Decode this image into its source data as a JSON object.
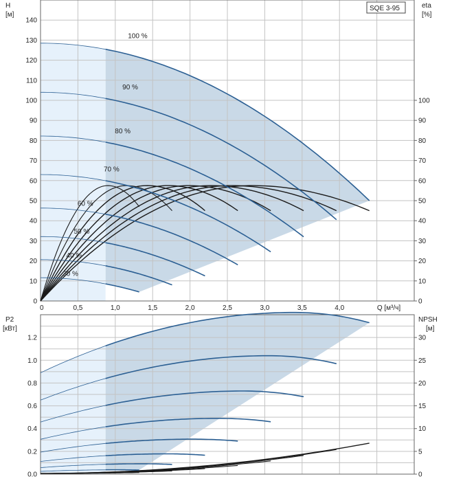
{
  "chart_data": [
    {
      "type": "line",
      "name": "head-curves",
      "title": "SQE 3-95",
      "xlabel": "Q [м³/ч]",
      "ylabel_left": "H",
      "ylabel_left_unit": "[м]",
      "ylabel_right": "eta",
      "ylabel_right_unit": "[%]",
      "xlim": [
        0,
        5.0
      ],
      "ylim_left": [
        0,
        150
      ],
      "ylim_right": [
        0,
        150
      ],
      "x_ticks": [
        "0",
        "0,5",
        "1,0",
        "1,5",
        "2,0",
        "2,5",
        "3,0",
        "3,5",
        "4,0",
        "Q [м³/ч]"
      ],
      "x_tick_values": [
        0,
        0.5,
        1.0,
        1.5,
        2.0,
        2.5,
        3.0,
        3.5,
        4.0
      ],
      "y_ticks_left": [
        "0",
        "10",
        "20",
        "30",
        "40",
        "50",
        "60",
        "70",
        "80",
        "90",
        "100",
        "110",
        "120",
        "130",
        "140"
      ],
      "y_ticks_right": [
        "0",
        "10",
        "20",
        "30",
        "40",
        "50",
        "60",
        "70",
        "80",
        "90",
        "100"
      ],
      "grid": true,
      "min_flow_q": 0.87,
      "series": [
        {
          "name": "100 %",
          "h0": 128.5,
          "qmax": 4.4,
          "hend": 50
        },
        {
          "name": "90 %",
          "h0": 104,
          "qmax": 3.96,
          "hend": 40.5
        },
        {
          "name": "80 %",
          "h0": 82.2,
          "qmax": 3.52,
          "hend": 32
        },
        {
          "name": "70 %",
          "h0": 63,
          "qmax": 3.08,
          "hend": 24.5
        },
        {
          "name": "60 %",
          "h0": 46.3,
          "qmax": 2.64,
          "hend": 18
        },
        {
          "name": "50 %",
          "h0": 32.1,
          "qmax": 2.2,
          "hend": 12.5
        },
        {
          "name": "40 %",
          "h0": 20.6,
          "qmax": 1.76,
          "hend": 8
        },
        {
          "name": "30 %",
          "h0": 11.6,
          "qmax": 1.32,
          "hend": 4.5
        }
      ],
      "efficiency_peaks": [
        {
          "q_peak": 0.9,
          "q_end": 1.32,
          "e_end": 47
        },
        {
          "q_peak": 1.15,
          "q_end": 1.76,
          "e_end": 45
        },
        {
          "q_peak": 1.42,
          "q_end": 2.2,
          "e_end": 45
        },
        {
          "q_peak": 1.7,
          "q_end": 2.64,
          "e_end": 45
        },
        {
          "q_peak": 1.98,
          "q_end": 3.08,
          "e_end": 45
        },
        {
          "q_peak": 2.27,
          "q_end": 3.52,
          "e_end": 45
        },
        {
          "q_peak": 2.55,
          "q_end": 3.96,
          "e_end": 45
        },
        {
          "q_peak": 2.83,
          "q_end": 4.4,
          "e_end": 45
        }
      ],
      "efficiency_max": 57.5
    },
    {
      "type": "line",
      "name": "power-curves",
      "xlabel": "Q [м³/ч]",
      "ylabel_left": "P2",
      "ylabel_left_unit": "[кВт]",
      "ylabel_right": "NPSH",
      "ylabel_right_unit": "[м]",
      "ylim_left": [
        0,
        1.4
      ],
      "ylim_right": [
        0,
        35
      ],
      "y_ticks_left": [
        "0.0",
        "0.2",
        "0.4",
        "0.6",
        "0.8",
        "1.0",
        "1.2"
      ],
      "y_ticks_right": [
        "0",
        "5",
        "10",
        "15",
        "20",
        "25",
        "30"
      ],
      "series": [
        {
          "name": "100 %",
          "p0": 0.89,
          "pmax": 1.42,
          "qpk": 3.4,
          "qmax": 4.4,
          "pend": 1.33
        },
        {
          "name": "90 %",
          "p0": 0.65,
          "pmax": 1.04,
          "qpk": 3.06,
          "qmax": 3.96,
          "pend": 0.97
        },
        {
          "name": "80 %",
          "p0": 0.457,
          "pmax": 0.73,
          "qpk": 2.72,
          "qmax": 3.52,
          "pend": 0.68
        },
        {
          "name": "70 %",
          "p0": 0.306,
          "pmax": 0.49,
          "qpk": 2.38,
          "qmax": 3.08,
          "pend": 0.46
        },
        {
          "name": "60 %",
          "p0": 0.193,
          "pmax": 0.307,
          "qpk": 2.04,
          "qmax": 2.64,
          "pend": 0.29
        },
        {
          "name": "50 %",
          "p0": 0.111,
          "pmax": 0.178,
          "qpk": 1.7,
          "qmax": 2.2,
          "pend": 0.166
        },
        {
          "name": "40 %",
          "p0": 0.057,
          "pmax": 0.091,
          "qpk": 1.36,
          "qmax": 1.76,
          "pend": 0.085
        },
        {
          "name": "30 %",
          "p0": 0.024,
          "pmax": 0.038,
          "qpk": 1.02,
          "qmax": 1.32,
          "pend": 0.036
        }
      ],
      "npsh": {
        "qmax": 4.4,
        "end_values": [
          6.8,
          5.4,
          4.1,
          2.9,
          1.9,
          1.2,
          0.7,
          0.35
        ]
      }
    }
  ]
}
